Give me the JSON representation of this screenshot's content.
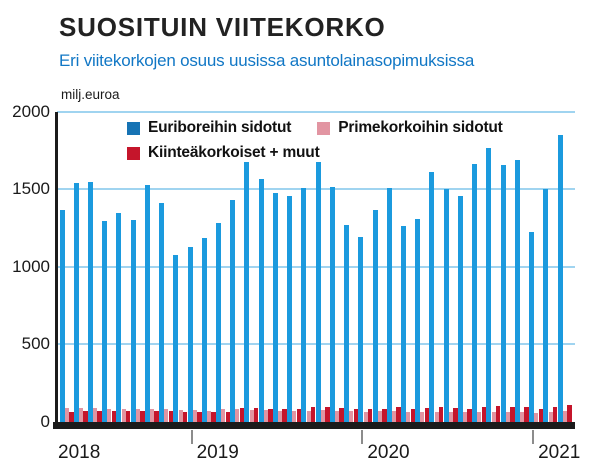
{
  "title": "SUOSITUIN VIITEKORKO",
  "subtitle": "Eri viitekorkojen osuus uusissa asuntolainasopimuksissa",
  "unit_label": "milj.euroa",
  "colors": {
    "euribor_bar": "#1b9ade",
    "euribor_legend": "#1673b4",
    "prime": "#e295a2",
    "fixed": "#c5152b",
    "gridline": "#a0d4f0",
    "axis": "#1b1b1b",
    "subtitle_blue": "#1177c5",
    "title_text": "#222222",
    "year_tick": "#8c8c8c"
  },
  "legend": {
    "rows": [
      [
        {
          "key": "euribor_legend",
          "label": "Euriboreihin sidotut"
        },
        {
          "key": "prime",
          "label": "Primekorkoihin sidotut"
        }
      ],
      [
        {
          "key": "fixed",
          "label": "Kiinteäkorkoiset + muut"
        }
      ]
    ]
  },
  "chart_data": {
    "type": "bar",
    "title": "SUOSITUIN VIITEKORKO",
    "subtitle": "Eri viitekorkojen osuus uusissa asuntolainasopimuksissa",
    "ylabel": "milj.euroa",
    "xlabel": "",
    "ylim": [
      0,
      2000
    ],
    "yticks": [
      0,
      500,
      1000,
      1500,
      2000
    ],
    "grid": true,
    "legend_position": "top-inside",
    "x": [
      "2018-04",
      "2018-05",
      "2018-06",
      "2018-07",
      "2018-08",
      "2018-09",
      "2018-10",
      "2018-11",
      "2018-12",
      "2019-01",
      "2019-02",
      "2019-03",
      "2019-04",
      "2019-05",
      "2019-06",
      "2019-07",
      "2019-08",
      "2019-09",
      "2019-10",
      "2019-11",
      "2019-12",
      "2020-01",
      "2020-02",
      "2020-03",
      "2020-04",
      "2020-05",
      "2020-06",
      "2020-07",
      "2020-08",
      "2020-09",
      "2020-10",
      "2020-11",
      "2020-12",
      "2021-01",
      "2021-02",
      "2021-03"
    ],
    "x_year_labels": [
      {
        "label": "2018",
        "start_index": 0
      },
      {
        "label": "2019",
        "start_index": 9
      },
      {
        "label": "2020",
        "start_index": 21
      },
      {
        "label": "2021",
        "start_index": 33
      }
    ],
    "series": [
      {
        "name": "Euriboreihin sidotut",
        "color_key": "euribor_bar",
        "values": [
          1370,
          1540,
          1550,
          1295,
          1345,
          1305,
          1530,
          1410,
          1075,
          1130,
          1185,
          1280,
          1430,
          1675,
          1570,
          1475,
          1455,
          1510,
          1675,
          1515,
          1270,
          1190,
          1370,
          1510,
          1265,
          1310,
          1610,
          1505,
          1455,
          1665,
          1770,
          1655,
          1690,
          1225,
          1500,
          1850
        ]
      },
      {
        "name": "Primekorkoihin sidotut",
        "color_key": "prime",
        "values": [
          90,
          88,
          86,
          85,
          82,
          80,
          82,
          84,
          75,
          74,
          70,
          80,
          80,
          78,
          75,
          72,
          70,
          72,
          75,
          72,
          70,
          65,
          68,
          70,
          65,
          62,
          65,
          63,
          60,
          62,
          65,
          62,
          65,
          58,
          60,
          70
        ]
      },
      {
        "name": "Kiinteäkorkoiset + muut",
        "color_key": "fixed",
        "values": [
          65,
          67,
          68,
          66,
          68,
          66,
          68,
          66,
          62,
          63,
          62,
          64,
          88,
          90,
          85,
          82,
          80,
          92,
          95,
          88,
          85,
          80,
          85,
          95,
          85,
          88,
          95,
          90,
          85,
          95,
          100,
          92,
          98,
          80,
          95,
          110
        ]
      }
    ]
  }
}
